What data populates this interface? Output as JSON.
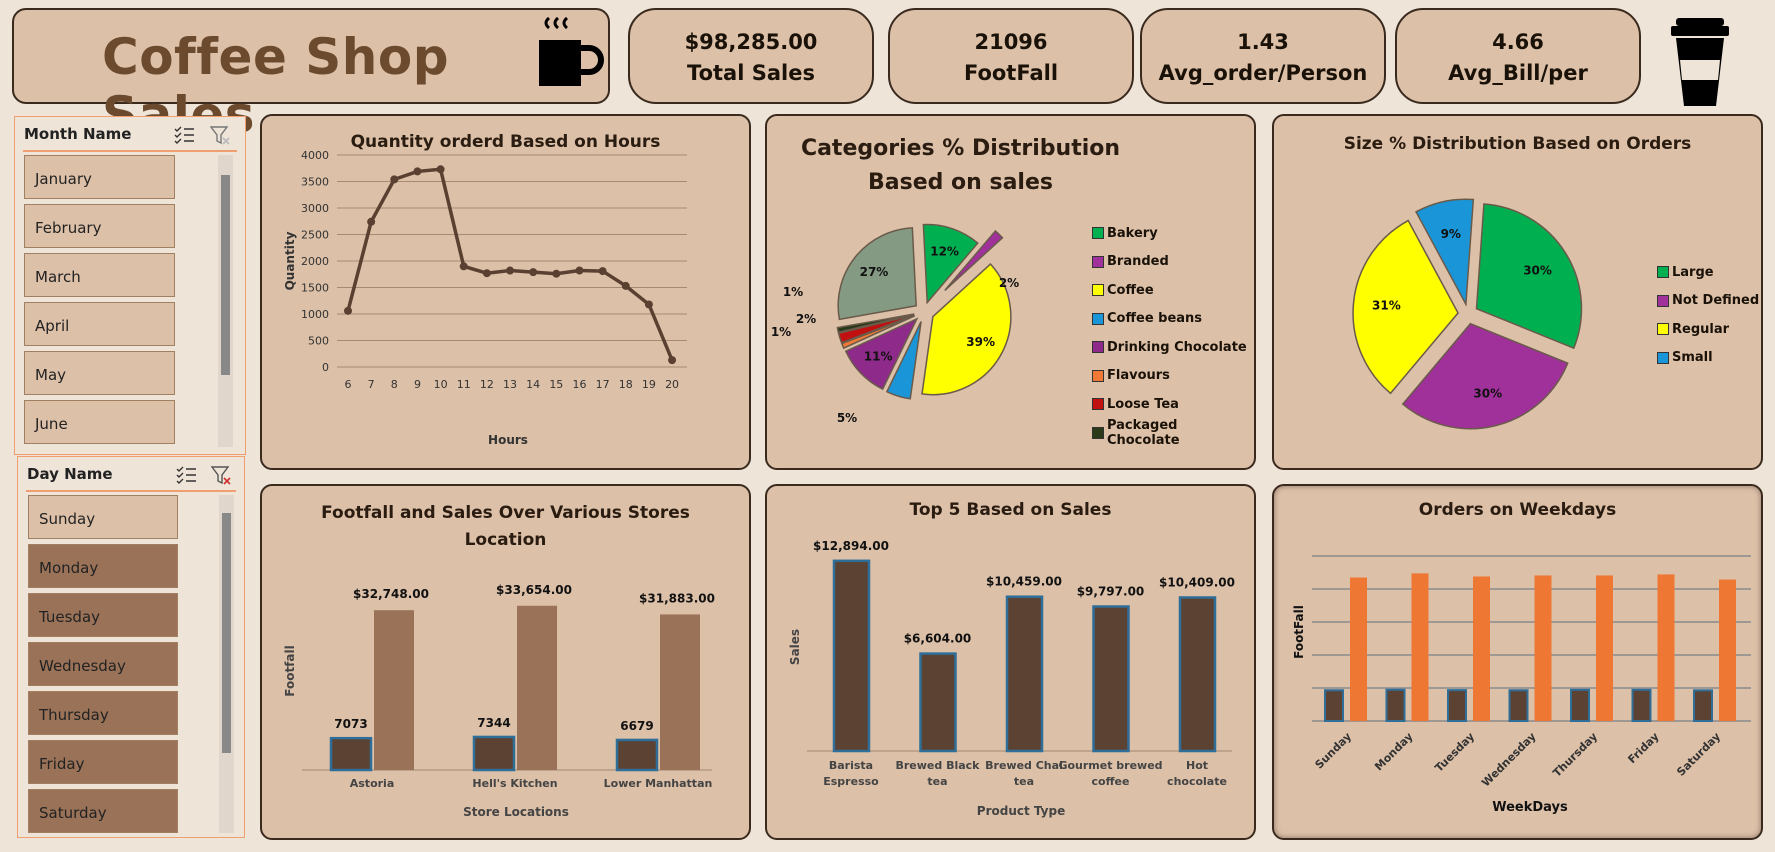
{
  "header": {
    "title": "Coffee Shop Sales"
  },
  "kpis": [
    {
      "value": "$98,285.00",
      "label": "Total Sales"
    },
    {
      "value": "21096",
      "label": "FootFall"
    },
    {
      "value": "1.43",
      "label": "Avg_order/Person"
    },
    {
      "value": "4.66",
      "label": "Avg_Bill/per"
    }
  ],
  "month_slicer": {
    "header": "Month Name",
    "items": [
      "January",
      "February",
      "March",
      "April",
      "May",
      "June"
    ]
  },
  "day_slicer": {
    "header": "Day Name",
    "items": [
      "Sunday",
      "Monday",
      "Tuesday",
      "Wednesday",
      "Thursday",
      "Friday",
      "Saturday"
    ],
    "selected": [
      "Sunday"
    ]
  },
  "icons": [
    "coffee-cup-icon",
    "takeaway-cup-icon",
    "multi-select-icon",
    "clear-filter-icon"
  ],
  "colors": {
    "panel": "#dcc0a8",
    "border": "#3a2a1e",
    "line": "#5a4030",
    "bar_dark": "#5c4232",
    "bar_light": "#9a7258",
    "bar_orange": "#ee7733",
    "accent_orange": "#f0a070"
  },
  "chart_data": [
    {
      "type": "line",
      "title": "Quantity orderd Based on Hours",
      "xlabel": "Hours",
      "ylabel": "Quantity",
      "x": [
        6,
        7,
        8,
        9,
        10,
        11,
        12,
        13,
        14,
        15,
        16,
        17,
        18,
        19,
        20
      ],
      "values": [
        1060,
        2740,
        3540,
        3690,
        3730,
        1900,
        1770,
        1820,
        1790,
        1760,
        1820,
        1810,
        1530,
        1180,
        130
      ],
      "ylim": [
        0,
        4000
      ],
      "yticks": [
        0,
        500,
        1000,
        1500,
        2000,
        2500,
        3000,
        3500,
        4000
      ],
      "grid": true
    },
    {
      "type": "pie",
      "title": "Categories % Distribution Based on sales",
      "categories": [
        "Bakery",
        "Branded",
        "Coffee",
        "Coffee beans",
        "Drinking Chocolate",
        "Flavours",
        "Loose Tea",
        "Packaged Chocolate"
      ],
      "values": [
        12,
        2,
        39,
        5,
        11,
        1,
        2,
        1
      ],
      "labels": [
        "12%",
        "2%",
        "39%",
        "5%",
        "11%",
        "1%",
        "2%",
        "1%"
      ],
      "colors": [
        "#00b050",
        "#a0309a",
        "#ffff00",
        "#1a96d8",
        "#8e2a8a",
        "#f07a35",
        "#c01010",
        "#2a3a18"
      ],
      "other": {
        "value": 27,
        "label": "27%",
        "color": "#849a82"
      },
      "legend": "right"
    },
    {
      "type": "pie",
      "title": "Size % Distribution Based on Orders",
      "categories": [
        "Large",
        "Not Defined",
        "Regular",
        "Small"
      ],
      "values": [
        30,
        30,
        31,
        9
      ],
      "labels": [
        "30%",
        "30%",
        "31%",
        "9%"
      ],
      "colors": [
        "#00b050",
        "#a0309a",
        "#ffff00",
        "#1a96d8"
      ],
      "legend": "right"
    },
    {
      "type": "bar",
      "title": "Footfall and Sales Over Various Stores Location",
      "xlabel": "Store Locations",
      "ylabel": "Footfall",
      "categories": [
        "Astoria",
        "Hell's Kitchen",
        "Lower Manhattan"
      ],
      "series": [
        {
          "values": [
            7073,
            7344,
            6679
          ],
          "labels": [
            "7073",
            "7344",
            "6679"
          ]
        },
        {
          "values": [
            32748,
            33654,
            31883
          ],
          "labels": [
            "$32,748.00",
            "$33,654.00",
            "$31,883.00"
          ]
        }
      ]
    },
    {
      "type": "bar",
      "title": "Top 5 Based on  Sales",
      "xlabel": "Product Type",
      "ylabel": "Sales",
      "categories": [
        "Barista Espresso",
        "Brewed Black tea",
        "Brewed Chai tea",
        "Gourmet brewed coffee",
        "Hot chocolate"
      ],
      "values": [
        12894,
        6604,
        10459,
        9797,
        10409
      ],
      "labels": [
        "$12,894.00",
        "$6,604.00",
        "$10,459.00",
        "$9,797.00",
        "$10,409.00"
      ]
    },
    {
      "type": "bar",
      "title": "Orders on Weekdays",
      "xlabel": "WeekDays",
      "ylabel": "FootFall",
      "categories": [
        "Sunday",
        "Monday",
        "Tuesday",
        "Wednesday",
        "Thursday",
        "Friday",
        "Saturday"
      ],
      "series": [
        {
          "values": [
            3000,
            3050,
            3010,
            3000,
            3040,
            3040,
            2990
          ]
        },
        {
          "values": [
            14000,
            14400,
            14100,
            14200,
            14200,
            14300,
            13800
          ]
        }
      ],
      "grid": true
    }
  ]
}
